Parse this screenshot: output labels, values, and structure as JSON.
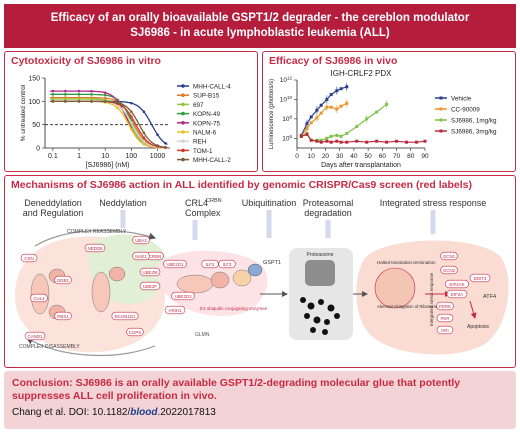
{
  "header": {
    "line1": "Efficacy of an orally bioavailable GSPT1/2 degrader - the cereblon modulator",
    "line2": "SJ6986 - in acute lymphoblastic leukemia (ALL)"
  },
  "vitro": {
    "title": "Cytotoxicity of SJ6986 in vitro",
    "chart_data": {
      "type": "line",
      "xlabel": "[SJ6986] (nM)",
      "ylabel": "% untreated control",
      "xscale": "log",
      "xlim": [
        0.05,
        3000
      ],
      "ylim": [
        0,
        150
      ],
      "xticks": [
        "0.1",
        "1",
        "10",
        "100",
        "1000"
      ],
      "yticks": [
        "0",
        "50",
        "100",
        "150"
      ],
      "threshold": 50,
      "series": [
        {
          "name": "MHH-CALL-4",
          "color": "#2b3f8f",
          "ic50": 600,
          "top": 100
        },
        {
          "name": "SUP-B15",
          "color": "#e07b22",
          "ic50": 120,
          "top": 108
        },
        {
          "name": "697",
          "color": "#8fc43c",
          "ic50": 90,
          "top": 105
        },
        {
          "name": "KOPN-49",
          "color": "#2e9a3c",
          "ic50": 100,
          "top": 115
        },
        {
          "name": "KOPN-75",
          "color": "#b02a8a",
          "ic50": 70,
          "top": 122
        },
        {
          "name": "NALM-6",
          "color": "#e8c22a",
          "ic50": 80,
          "top": 100
        },
        {
          "name": "REH",
          "color": "#d4d4d4",
          "ic50": 110,
          "top": 100
        },
        {
          "name": "TOM-1",
          "color": "#d23a2a",
          "ic50": 150,
          "top": 100
        },
        {
          "name": "MHH-CALL-2",
          "color": "#7a5c3a",
          "ic50": 200,
          "top": 100
        }
      ]
    }
  },
  "vivo": {
    "title": "Efficacy of SJ6986 in vivo",
    "chart_data": {
      "type": "line",
      "title": "IGH-CRLF2 PDX",
      "xlabel": "Days after transplantation",
      "ylabel": "Luminescence (photons/s)",
      "yscale": "log",
      "xlim": [
        0,
        90
      ],
      "ylim": [
        5,
        12
      ],
      "xticks": [
        "0",
        "10",
        "20",
        "30",
        "40",
        "50",
        "60",
        "70",
        "80",
        "90"
      ],
      "yticks": [
        "10^6",
        "10^8",
        "10^10",
        "10^12"
      ],
      "series": [
        {
          "name": "Vehicle",
          "color": "#2b3f8f",
          "x": [
            3,
            7,
            10,
            14,
            17,
            21,
            24,
            28,
            31,
            35
          ],
          "y": [
            6.3,
            7.5,
            8.2,
            8.9,
            9.4,
            10.0,
            10.5,
            10.9,
            11.1,
            11.3
          ]
        },
        {
          "name": "CC-90009",
          "color": "#e8962a",
          "x": [
            3,
            7,
            10,
            14,
            17,
            21,
            24,
            28,
            31,
            35
          ],
          "y": [
            6.2,
            7.0,
            7.6,
            8.1,
            8.6,
            9.2,
            9.2,
            9.0,
            9.3,
            9.6
          ]
        },
        {
          "name": "SJ6986, 1mg/kg",
          "color": "#7ec34a",
          "x": [
            3,
            7,
            10,
            14,
            17,
            21,
            24,
            28,
            31,
            35,
            42,
            49,
            56,
            63
          ],
          "y": [
            6.2,
            6.5,
            5.8,
            5.8,
            5.8,
            6.0,
            6.2,
            6.3,
            6.2,
            6.5,
            7.2,
            8.0,
            8.7,
            9.5
          ]
        },
        {
          "name": "SJ6986, 3mg/kg",
          "color": "#b82a3a",
          "x": [
            3,
            7,
            10,
            14,
            17,
            21,
            24,
            28,
            31,
            35,
            42,
            49,
            56,
            63,
            70,
            77,
            84,
            90
          ],
          "y": [
            6.2,
            6.4,
            5.8,
            5.7,
            5.6,
            5.7,
            5.6,
            5.7,
            5.6,
            5.6,
            5.7,
            5.6,
            5.7,
            5.6,
            5.7,
            5.6,
            5.6,
            5.7
          ]
        }
      ]
    }
  },
  "mech": {
    "title": "Mechanisms of SJ6986 action in ALL identified by genomic CRISPR/Cas9 screen (red labels)",
    "stages": {
      "s1a": "Deneddylation",
      "s1b": "and Regulation",
      "s2": "Neddylation",
      "s3a": "CRL4",
      "s3sup": "CRBN",
      "s3b": "Complex",
      "s4": "Ubiquitination",
      "s5a": "Proteasomal",
      "s5b": "degradation",
      "s6": "Integrated stress response"
    },
    "labels": {
      "reassembly": "COMPLEX REASSEMBLY",
      "disassembly": "COMPLEX DISASSEMBLY",
      "e3": "E3 ubiquitin conjugating enzymes",
      "proteasome": "Proteasome",
      "halted": "Halted translation termination",
      "ribosome": "Aberrant elongation of Ribosomes",
      "isr": "Integrated stress response",
      "glmn": "GLMN",
      "apoptosis": "Apoptosis",
      "atf4": "ATF4",
      "gspt1": "GSPT1"
    },
    "nodes": [
      "CAND1",
      "CUL4",
      "RBX1",
      "DDB1",
      "CSN",
      "CRBN",
      "NEDD8",
      "UBA3",
      "NAE1",
      "UBE2M",
      "UBE2F",
      "DCUN1D1",
      "COPS",
      "UBE2G1",
      "UBE2D3",
      "ILF2",
      "ILF3",
      "ARIH1",
      "GCN1",
      "GCN2",
      "EIF2A",
      "PERK",
      "PKR",
      "HRI",
      "EIF2AK",
      "DDIT3"
    ]
  },
  "conclusion": {
    "label": "Conclusion:",
    "text": "SJ6986 is an orally available GSPT1/2-degrading molecular glue that potently suppresses ALL cell proliferation in vivo.",
    "ref_prefix": "Chang et al. DOI: 10.1182/",
    "ref_journal": "blood",
    "ref_suffix": ".2022017813"
  }
}
